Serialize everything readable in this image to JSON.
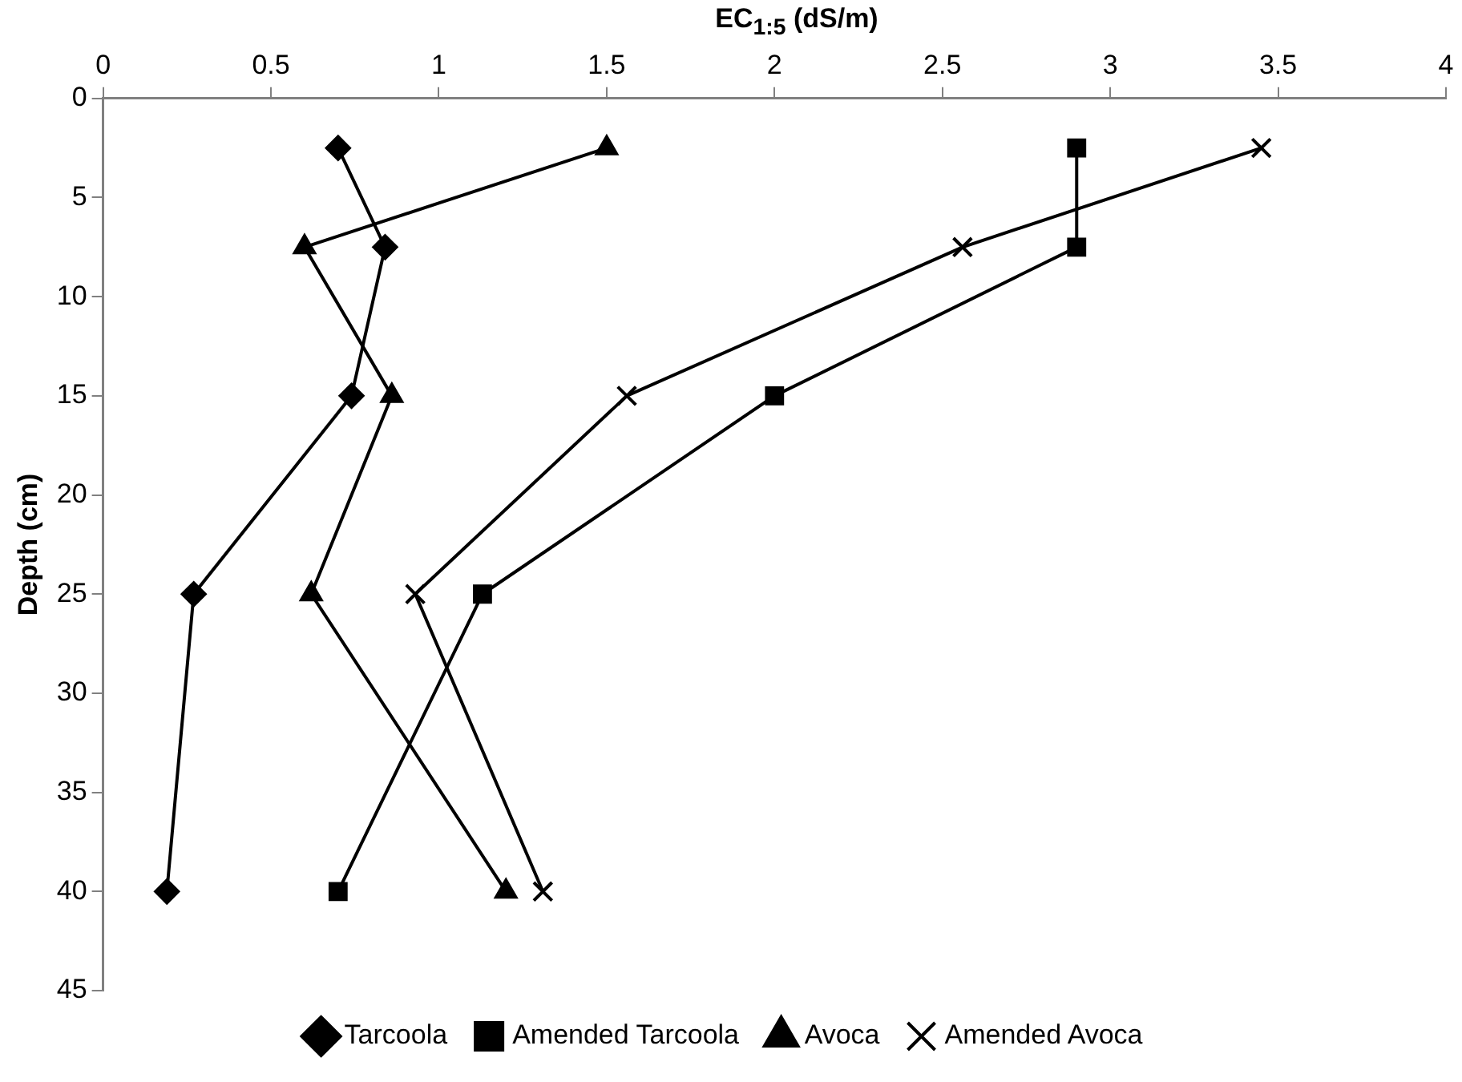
{
  "chart_data": {
    "type": "line",
    "xlabel": "EC$_{1:5}$ (dS/m)",
    "ylabel": "Depth (cm)",
    "xlim": [
      0,
      4
    ],
    "xticks": [
      0,
      0.5,
      1,
      1.5,
      2,
      2.5,
      3,
      3.5,
      4
    ],
    "ylim": [
      45,
      0
    ],
    "yticks": [
      0,
      5,
      10,
      15,
      20,
      25,
      30,
      35,
      40,
      45
    ],
    "grid": false,
    "legend": "bottom",
    "line_style": "solid",
    "series": [
      {
        "name": "Tarcoola",
        "color": "#000000",
        "marker": "diamond",
        "x": [
          0.7,
          0.84,
          0.74,
          0.27,
          0.19
        ],
        "values": [
          2.5,
          7.5,
          15,
          25,
          40
        ]
      },
      {
        "name": "Amended Tarcoola",
        "color": "#000000",
        "marker": "square",
        "x": [
          2.9,
          2.9,
          2.0,
          1.13,
          0.7
        ],
        "values": [
          2.5,
          7.5,
          15,
          25,
          40
        ]
      },
      {
        "name": "Avoca",
        "color": "#000000",
        "marker": "triangle",
        "x": [
          1.5,
          0.6,
          0.86,
          0.62,
          1.2
        ],
        "values": [
          2.5,
          7.5,
          15,
          25,
          40
        ]
      },
      {
        "name": "Amended Avoca",
        "color": "#000000",
        "marker": "cross",
        "x": [
          3.45,
          2.56,
          1.56,
          0.93,
          1.31
        ],
        "values": [
          2.5,
          7.5,
          15,
          25,
          40
        ]
      }
    ]
  }
}
